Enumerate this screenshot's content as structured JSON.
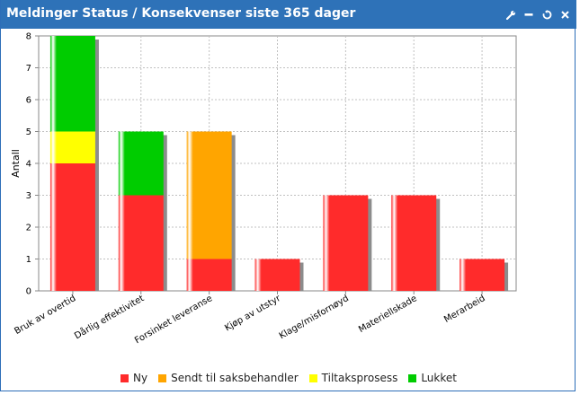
{
  "header": {
    "title": "Meldinger Status / Konsekvenser siste 365 dager",
    "tools": [
      "wrench-icon",
      "minimize-icon",
      "refresh-icon",
      "close-icon"
    ]
  },
  "chart_data": {
    "type": "bar",
    "stacked": true,
    "title": "",
    "xlabel": "",
    "ylabel": "Antall",
    "ylim": [
      0,
      8
    ],
    "yticks": [
      0,
      1,
      2,
      3,
      4,
      5,
      6,
      7,
      8
    ],
    "grid": true,
    "legend_position": "bottom",
    "categories": [
      "Bruk av overtid",
      "Dårlig effektivitet",
      "Forsinket leveranse",
      "Kjøp av utstyr",
      "Klage/misfornøyd",
      "Materiellskade",
      "Merarbeid"
    ],
    "series": [
      {
        "name": "Ny",
        "color": "#ff2b2b",
        "values": [
          4,
          3,
          1,
          1,
          3,
          3,
          1
        ]
      },
      {
        "name": "Sendt til saksbehandler",
        "color": "#ffa500",
        "values": [
          0,
          0,
          4,
          0,
          0,
          0,
          0
        ]
      },
      {
        "name": "Tiltaksprosess",
        "color": "#ffff00",
        "values": [
          1,
          0,
          0,
          0,
          0,
          0,
          0
        ]
      },
      {
        "name": "Lukket",
        "color": "#00cc00",
        "values": [
          3,
          2,
          0,
          0,
          0,
          0,
          0
        ]
      }
    ]
  }
}
